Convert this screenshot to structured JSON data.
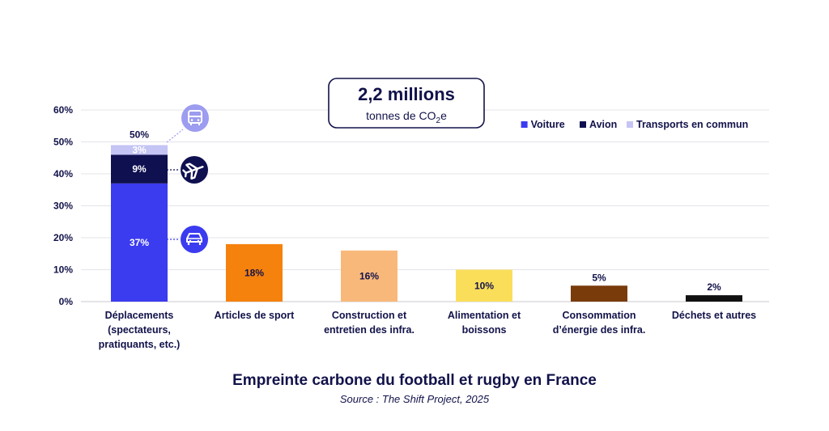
{
  "callout": {
    "value": "2,2 millions",
    "unit_prefix": "tonnes de CO",
    "unit_sub": "2",
    "unit_suffix": "e"
  },
  "footer": {
    "title": "Empreinte carbone du football et rugby en France",
    "source": "Source : The Shift Project, 2025"
  },
  "icons": [
    "bus-icon",
    "airplane-icon",
    "car-icon"
  ],
  "colors": {
    "axis_text": "#12124a",
    "grid": "#e4e4ea",
    "icon_light": "#9c9cf0",
    "icon_dark": "#0f1050",
    "icon_blue": "#3b3bf0"
  },
  "chart_data": {
    "type": "bar",
    "stacked": true,
    "ylim": [
      0,
      60
    ],
    "y_ticks": [
      "0%",
      "10%",
      "20%",
      "30%",
      "40%",
      "50%",
      "60%"
    ],
    "grid": true,
    "legend_position": "top-right",
    "legend": [
      {
        "name": "Voiture",
        "color": "#3b3bf0"
      },
      {
        "name": "Avion",
        "color": "#0f1050"
      },
      {
        "name": "Transports en commun",
        "color": "#c4c4f5"
      }
    ],
    "categories": [
      {
        "label_lines": [
          "Déplacements",
          "(spectateurs,",
          "pratiquants, etc.)"
        ],
        "total_label": "50%",
        "segments": [
          {
            "series": "Voiture",
            "value": 37,
            "label": "37%",
            "color": "#3b3bf0",
            "label_color": "#ffffff",
            "italic": true
          },
          {
            "series": "Avion",
            "value": 9,
            "label": "9%",
            "color": "#0f1050",
            "label_color": "#ffffff",
            "italic": true
          },
          {
            "series": "Transports en commun",
            "value": 3,
            "label": "3%",
            "color": "#c4c4f5",
            "label_color": "#ffffff",
            "italic": true
          }
        ]
      },
      {
        "label_lines": [
          "Articles de sport"
        ],
        "segments": [
          {
            "value": 18,
            "label": "18%",
            "color": "#f5820d",
            "label_color": "#12124a",
            "inside": true
          }
        ]
      },
      {
        "label_lines": [
          "Construction et",
          "entretien des infra."
        ],
        "segments": [
          {
            "value": 16,
            "label": "16%",
            "color": "#f8b87a",
            "label_color": "#12124a",
            "inside": true
          }
        ]
      },
      {
        "label_lines": [
          "Alimentation et",
          "boissons"
        ],
        "segments": [
          {
            "value": 10,
            "label": "10%",
            "color": "#fade5a",
            "label_color": "#12124a",
            "inside": true
          }
        ]
      },
      {
        "label_lines": [
          "Consommation",
          "d’énergie des infra."
        ],
        "segments": [
          {
            "value": 5,
            "label": "5%",
            "color": "#7a3b0a",
            "label_color": "#12124a",
            "inside": false
          }
        ]
      },
      {
        "label_lines": [
          "Déchets et autres"
        ],
        "segments": [
          {
            "value": 2,
            "label": "2%",
            "color": "#111111",
            "label_color": "#12124a",
            "inside": false
          }
        ]
      }
    ]
  }
}
